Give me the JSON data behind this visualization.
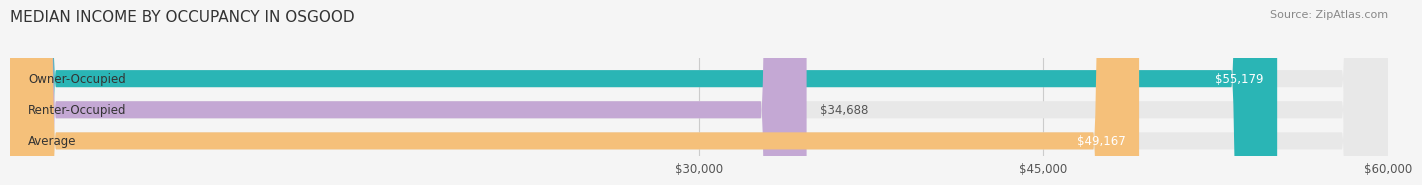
{
  "title": "MEDIAN INCOME BY OCCUPANCY IN OSGOOD",
  "source": "Source: ZipAtlas.com",
  "categories": [
    "Owner-Occupied",
    "Renter-Occupied",
    "Average"
  ],
  "values": [
    55179,
    34688,
    49167
  ],
  "bar_colors": [
    "#2ab5b5",
    "#c4a8d4",
    "#f5c07a"
  ],
  "bar_labels": [
    "$55,179",
    "$34,688",
    "$49,167"
  ],
  "xlim": [
    0,
    60000
  ],
  "xticks": [
    30000,
    45000,
    60000
  ],
  "xtick_labels": [
    "$30,000",
    "$45,000",
    "$60,000"
  ],
  "background_color": "#f5f5f5",
  "bar_background_color": "#e8e8e8",
  "title_fontsize": 11,
  "label_fontsize": 8.5,
  "source_fontsize": 8
}
